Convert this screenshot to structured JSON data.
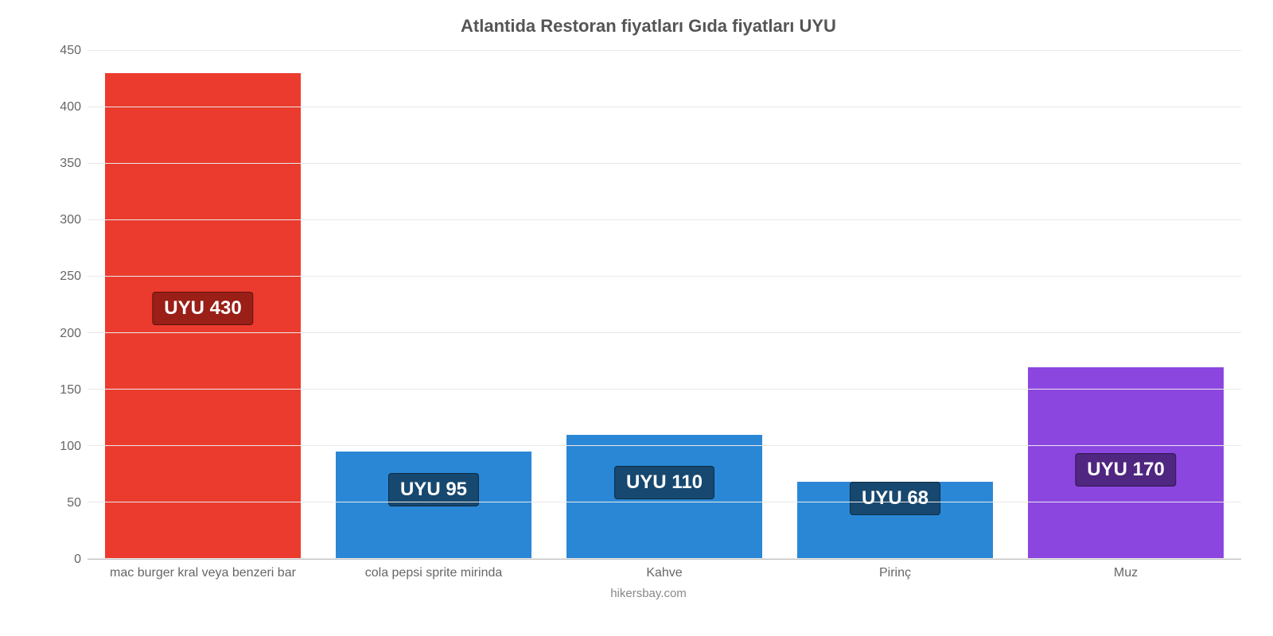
{
  "chart": {
    "type": "bar",
    "title": "Atlantida Restoran fiyatları Gıda fiyatları UYU",
    "title_fontsize": 22,
    "title_color": "#555555",
    "footer": "hikersbay.com",
    "footer_color": "#888888",
    "background_color": "#ffffff",
    "grid_color": "#e9e9e9",
    "axis_line_color": "#c0c0c0",
    "ylim_min": 0,
    "ylim_max": 450,
    "ytick_step": 50,
    "y_tick_labels": [
      "0",
      "50",
      "100",
      "150",
      "200",
      "250",
      "300",
      "350",
      "400",
      "450"
    ],
    "y_label_fontsize": 16,
    "y_label_color": "#666666",
    "x_label_fontsize": 16,
    "x_label_color": "#666666",
    "bar_width_pct": 85,
    "value_label_fontsize": 24,
    "bars": [
      {
        "category": "mac burger kral veya benzeri bar",
        "value": 430,
        "display_label": "UYU 430",
        "bar_color": "#eb3b2e",
        "label_bg": "#991f17",
        "label_top_pct": 45
      },
      {
        "category": "cola pepsi sprite mirinda",
        "value": 95,
        "display_label": "UYU 95",
        "bar_color": "#2a87d6",
        "label_bg": "#17486f",
        "label_top_pct": 20
      },
      {
        "category": "Kahve",
        "value": 110,
        "display_label": "UYU 110",
        "bar_color": "#2a87d6",
        "label_bg": "#17486f",
        "label_top_pct": 25
      },
      {
        "category": "Pirinç",
        "value": 68,
        "display_label": "UYU 68",
        "bar_color": "#2a87d6",
        "label_bg": "#17486f",
        "label_top_pct": 0
      },
      {
        "category": "Muz",
        "value": 170,
        "display_label": "UYU 170",
        "bar_color": "#8c46e0",
        "label_bg": "#4f2680",
        "label_top_pct": 45
      }
    ]
  }
}
